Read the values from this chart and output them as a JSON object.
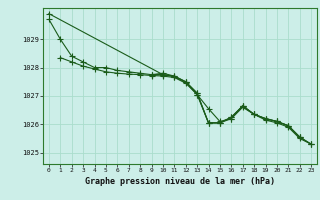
{
  "title": "Graphe pression niveau de la mer (hPa)",
  "background_color": "#cceee8",
  "grid_color": "#aaddcc",
  "line_color": "#1a5c1a",
  "xlim": [
    -0.5,
    23.5
  ],
  "ylim": [
    1024.6,
    1030.1
  ],
  "yticks": [
    1025,
    1026,
    1027,
    1028,
    1029
  ],
  "xticks": [
    0,
    1,
    2,
    3,
    4,
    5,
    6,
    7,
    8,
    9,
    10,
    11,
    12,
    13,
    14,
    15,
    16,
    17,
    18,
    19,
    20,
    21,
    22,
    23
  ],
  "lines_data": {
    "line1": {
      "x": [
        0,
        1,
        2,
        3,
        4,
        5,
        6,
        7,
        8,
        9,
        10,
        11,
        12,
        13,
        14,
        15,
        16,
        17,
        18,
        19,
        20,
        21,
        22
      ],
      "y": [
        1029.7,
        1029.0,
        1028.4,
        1028.2,
        1028.0,
        1028.0,
        1027.9,
        1027.85,
        1027.8,
        1027.75,
        1027.8,
        1027.7,
        1027.5,
        1027.1,
        1026.05,
        1026.05,
        1026.2,
        1026.65,
        1026.35,
        1026.2,
        1026.1,
        1025.95,
        1025.55
      ]
    },
    "line2": {
      "x": [
        0,
        10
      ],
      "y": [
        1029.9,
        1027.75
      ]
    },
    "line3": {
      "x": [
        1,
        2,
        3,
        4,
        5,
        6,
        7,
        8,
        9,
        10,
        11,
        12,
        13,
        14,
        15,
        16,
        17,
        18,
        19,
        20,
        21,
        22,
        23
      ],
      "y": [
        1028.35,
        1028.2,
        1028.05,
        1027.95,
        1027.85,
        1027.8,
        1027.77,
        1027.75,
        1027.72,
        1027.7,
        1027.65,
        1027.45,
        1027.05,
        1026.55,
        1026.1,
        1026.2,
        1026.6,
        1026.35,
        1026.15,
        1026.05,
        1025.9,
        1025.5,
        1025.3
      ]
    },
    "line4": {
      "x": [
        9,
        10,
        11,
        12,
        13,
        14,
        15,
        16,
        17,
        18,
        19,
        20,
        21,
        22,
        23
      ],
      "y": [
        1027.75,
        1027.75,
        1027.7,
        1027.5,
        1027.1,
        1026.05,
        1026.05,
        1026.25,
        1026.65,
        1026.35,
        1026.2,
        1026.1,
        1025.95,
        1025.55,
        1025.3
      ]
    },
    "line5": {
      "x": [
        9,
        10,
        11,
        12,
        13,
        14,
        15,
        16,
        17,
        18,
        19,
        20,
        21,
        22,
        23
      ],
      "y": [
        1027.75,
        1027.75,
        1027.68,
        1027.48,
        1027.05,
        1026.05,
        1026.05,
        1026.25,
        1026.65,
        1026.35,
        1026.2,
        1026.1,
        1025.95,
        1025.55,
        1025.3
      ]
    }
  }
}
